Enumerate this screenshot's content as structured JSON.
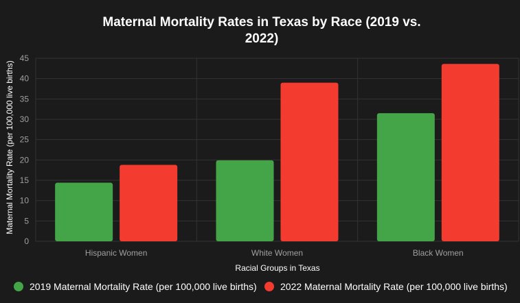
{
  "chart_data": {
    "type": "bar",
    "title": "Maternal Mortality Rates in Texas by Race (2019 vs. 2022)",
    "title_lines": [
      "Maternal Mortality Rates in Texas by Race (2019 vs.",
      "2022)"
    ],
    "xlabel": "Racial Groups in Texas",
    "ylabel": "Maternal Mortality Rate (per 100,000 live births)",
    "categories": [
      "Hispanic Women",
      "White Women",
      "Black Women"
    ],
    "ylim": [
      0,
      45
    ],
    "yticks": [
      0,
      5,
      10,
      15,
      20,
      25,
      30,
      35,
      40,
      45
    ],
    "grid": true,
    "legend_position": "bottom",
    "series": [
      {
        "name": "2019 Maternal Mortality Rate (per 100,000 live births)",
        "color": "#43a547",
        "values": [
          14.4,
          19.9,
          31.5
        ]
      },
      {
        "name": "2022 Maternal Mortality Rate (per 100,000 live births)",
        "color": "#f43b2f",
        "values": [
          18.8,
          39.0,
          43.6
        ]
      }
    ]
  }
}
